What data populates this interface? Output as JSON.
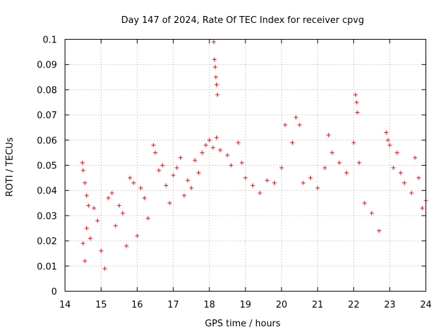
{
  "chart_data": {
    "type": "scatter",
    "title": "Day 147 of 2024, Rate Of TEC Index for receiver cpvg",
    "xlabel": "GPS time / hours",
    "ylabel": "ROTI / TECUs",
    "xlim": [
      14,
      24
    ],
    "ylim": [
      0,
      0.1
    ],
    "xticks": [
      "14",
      "15",
      "16",
      "17",
      "18",
      "19",
      "20",
      "21",
      "22",
      "23",
      "24"
    ],
    "yticks": [
      "0",
      "0.01",
      "0.02",
      "0.03",
      "0.04",
      "0.05",
      "0.06",
      "0.07",
      "0.08",
      "0.09",
      "0.1"
    ],
    "grid": true,
    "marker": "plus",
    "series": [
      {
        "name": "cpvg",
        "color": "#ff0000",
        "points": [
          [
            14.48,
            0.051
          ],
          [
            14.5,
            0.048
          ],
          [
            14.55,
            0.043
          ],
          [
            14.6,
            0.038
          ],
          [
            14.65,
            0.034
          ],
          [
            14.5,
            0.019
          ],
          [
            14.55,
            0.012
          ],
          [
            14.6,
            0.025
          ],
          [
            14.7,
            0.021
          ],
          [
            14.8,
            0.033
          ],
          [
            14.9,
            0.028
          ],
          [
            15.0,
            0.016
          ],
          [
            15.1,
            0.009
          ],
          [
            15.2,
            0.037
          ],
          [
            15.3,
            0.039
          ],
          [
            15.4,
            0.026
          ],
          [
            15.5,
            0.034
          ],
          [
            15.6,
            0.031
          ],
          [
            15.7,
            0.018
          ],
          [
            15.8,
            0.045
          ],
          [
            15.9,
            0.043
          ],
          [
            16.0,
            0.022
          ],
          [
            16.1,
            0.041
          ],
          [
            16.2,
            0.037
          ],
          [
            16.3,
            0.029
          ],
          [
            16.45,
            0.058
          ],
          [
            16.5,
            0.055
          ],
          [
            16.6,
            0.048
          ],
          [
            16.7,
            0.05
          ],
          [
            16.8,
            0.042
          ],
          [
            16.9,
            0.035
          ],
          [
            17.0,
            0.046
          ],
          [
            17.1,
            0.049
          ],
          [
            17.2,
            0.053
          ],
          [
            17.3,
            0.038
          ],
          [
            17.4,
            0.044
          ],
          [
            17.5,
            0.041
          ],
          [
            17.6,
            0.052
          ],
          [
            17.7,
            0.047
          ],
          [
            17.8,
            0.055
          ],
          [
            17.9,
            0.058
          ],
          [
            18.0,
            0.06
          ],
          [
            18.1,
            0.057
          ],
          [
            18.2,
            0.061
          ],
          [
            18.3,
            0.056
          ],
          [
            18.12,
            0.099
          ],
          [
            18.14,
            0.092
          ],
          [
            18.16,
            0.089
          ],
          [
            18.18,
            0.085
          ],
          [
            18.2,
            0.082
          ],
          [
            18.22,
            0.078
          ],
          [
            18.5,
            0.054
          ],
          [
            18.6,
            0.05
          ],
          [
            18.8,
            0.059
          ],
          [
            18.9,
            0.051
          ],
          [
            19.0,
            0.045
          ],
          [
            19.2,
            0.042
          ],
          [
            19.4,
            0.039
          ],
          [
            19.6,
            0.044
          ],
          [
            19.8,
            0.043
          ],
          [
            20.0,
            0.049
          ],
          [
            20.1,
            0.066
          ],
          [
            20.3,
            0.059
          ],
          [
            20.4,
            0.069
          ],
          [
            20.5,
            0.066
          ],
          [
            20.6,
            0.043
          ],
          [
            20.8,
            0.045
          ],
          [
            21.0,
            0.041
          ],
          [
            21.2,
            0.049
          ],
          [
            21.3,
            0.062
          ],
          [
            21.4,
            0.055
          ],
          [
            21.6,
            0.051
          ],
          [
            21.8,
            0.047
          ],
          [
            22.0,
            0.059
          ],
          [
            22.05,
            0.078
          ],
          [
            22.08,
            0.075
          ],
          [
            22.1,
            0.071
          ],
          [
            22.15,
            0.051
          ],
          [
            22.3,
            0.035
          ],
          [
            22.5,
            0.031
          ],
          [
            22.7,
            0.024
          ],
          [
            22.9,
            0.063
          ],
          [
            22.95,
            0.06
          ],
          [
            23.0,
            0.058
          ],
          [
            23.1,
            0.049
          ],
          [
            23.2,
            0.055
          ],
          [
            23.3,
            0.047
          ],
          [
            23.4,
            0.043
          ],
          [
            23.6,
            0.039
          ],
          [
            23.7,
            0.053
          ],
          [
            23.8,
            0.045
          ],
          [
            23.9,
            0.033
          ],
          [
            24.0,
            0.036
          ]
        ]
      }
    ]
  }
}
